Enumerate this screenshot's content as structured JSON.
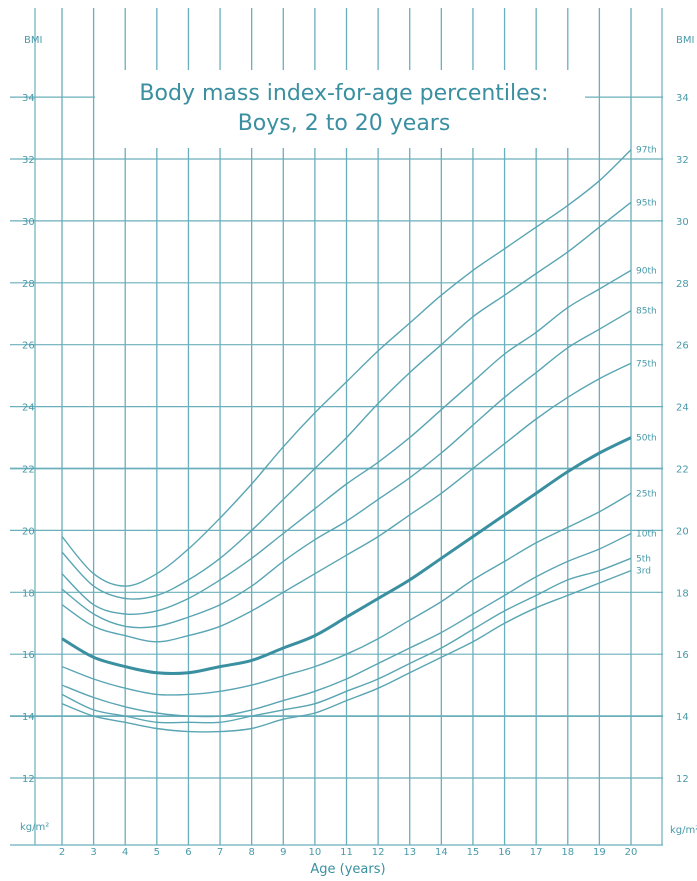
{
  "chart_data": {
    "type": "line",
    "title": "Body mass index-for-age percentiles:",
    "subtitle": "Boys, 2 to 20 years",
    "xlabel": "Age (years)",
    "ylabel_top": "BMI",
    "ylabel_bottom": "kg/m²",
    "xlim": [
      2,
      20
    ],
    "ylim": [
      10,
      36
    ],
    "x_ticks": [
      2,
      3,
      4,
      5,
      6,
      7,
      8,
      9,
      10,
      11,
      12,
      13,
      14,
      15,
      16,
      17,
      18,
      19,
      20
    ],
    "y_ticks": [
      12,
      14,
      16,
      18,
      20,
      22,
      24,
      26,
      28,
      30,
      32,
      34
    ],
    "grid": true,
    "x": [
      2,
      3,
      4,
      5,
      6,
      7,
      8,
      9,
      10,
      11,
      12,
      13,
      14,
      15,
      16,
      17,
      18,
      19,
      20
    ],
    "series": [
      {
        "name": "97th",
        "values": [
          19.8,
          18.6,
          18.2,
          18.6,
          19.4,
          20.4,
          21.5,
          22.7,
          23.8,
          24.8,
          25.8,
          26.7,
          27.6,
          28.4,
          29.1,
          29.8,
          30.5,
          31.3,
          32.3
        ]
      },
      {
        "name": "95th",
        "values": [
          19.3,
          18.2,
          17.8,
          17.9,
          18.4,
          19.1,
          20.0,
          21.0,
          22.0,
          23.0,
          24.1,
          25.1,
          26.0,
          26.9,
          27.6,
          28.3,
          29.0,
          29.8,
          30.6
        ]
      },
      {
        "name": "90th",
        "values": [
          18.6,
          17.6,
          17.3,
          17.4,
          17.8,
          18.4,
          19.1,
          19.9,
          20.7,
          21.5,
          22.2,
          23.0,
          23.9,
          24.8,
          25.7,
          26.4,
          27.2,
          27.8,
          28.4
        ]
      },
      {
        "name": "85th",
        "values": [
          18.1,
          17.3,
          16.9,
          16.9,
          17.2,
          17.6,
          18.2,
          19.0,
          19.7,
          20.3,
          21.0,
          21.7,
          22.5,
          23.4,
          24.3,
          25.1,
          25.9,
          26.5,
          27.1
        ]
      },
      {
        "name": "75th",
        "values": [
          17.6,
          16.9,
          16.6,
          16.4,
          16.6,
          16.9,
          17.4,
          18.0,
          18.6,
          19.2,
          19.8,
          20.5,
          21.2,
          22.0,
          22.8,
          23.6,
          24.3,
          24.9,
          25.4
        ]
      },
      {
        "name": "50th",
        "values": [
          16.5,
          15.9,
          15.6,
          15.4,
          15.4,
          15.6,
          15.8,
          16.2,
          16.6,
          17.2,
          17.8,
          18.4,
          19.1,
          19.8,
          20.5,
          21.2,
          21.9,
          22.5,
          23.0
        ]
      },
      {
        "name": "25th",
        "values": [
          15.6,
          15.2,
          14.9,
          14.7,
          14.7,
          14.8,
          15.0,
          15.3,
          15.6,
          16.0,
          16.5,
          17.1,
          17.7,
          18.4,
          19.0,
          19.6,
          20.1,
          20.6,
          21.2
        ]
      },
      {
        "name": "10th",
        "values": [
          15.0,
          14.6,
          14.3,
          14.1,
          14.0,
          14.0,
          14.2,
          14.5,
          14.8,
          15.2,
          15.7,
          16.2,
          16.7,
          17.3,
          17.9,
          18.5,
          19.0,
          19.4,
          19.9
        ]
      },
      {
        "name": "5th",
        "values": [
          14.7,
          14.2,
          14.0,
          13.8,
          13.8,
          13.8,
          14.0,
          14.2,
          14.4,
          14.8,
          15.2,
          15.7,
          16.2,
          16.8,
          17.4,
          17.9,
          18.4,
          18.7,
          19.1
        ]
      },
      {
        "name": "3rd",
        "values": [
          14.4,
          14.0,
          13.8,
          13.6,
          13.5,
          13.5,
          13.6,
          13.9,
          14.1,
          14.5,
          14.9,
          15.4,
          15.9,
          16.4,
          17.0,
          17.5,
          17.9,
          18.3,
          18.7
        ]
      }
    ],
    "emphasized_series": "50th",
    "colors": {
      "grid": "#6aafbb",
      "line": "#5aa5b3",
      "median": "#3a8fa0",
      "text": "#4a9aa8"
    }
  }
}
